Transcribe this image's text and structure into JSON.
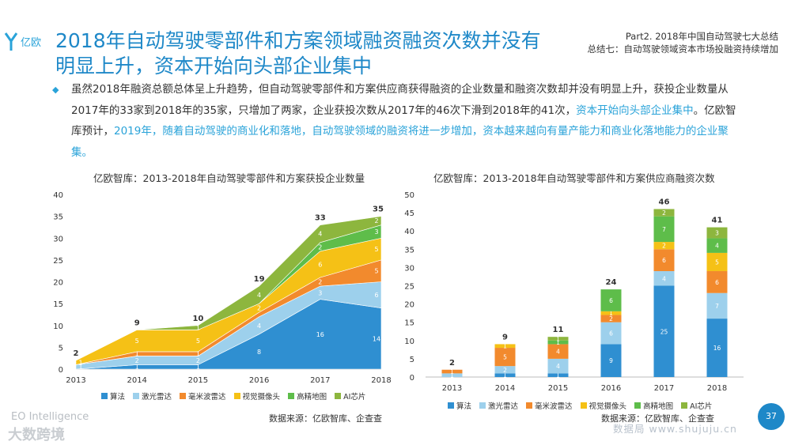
{
  "brand": {
    "logo_text": "亿欧"
  },
  "header": {
    "title": "2018年自动驾驶零部件和方案领域融资融资次数并没有明显上升，资本开始向头部企业集中",
    "part_label": "Part2. 2018年中国自动驾驶七大总结",
    "summary_label": "总结七：自动驾驶领域资本市场投融资持续增加"
  },
  "body": {
    "bullet": "◆",
    "text_main": "虽然2018年融资总额总体呈上升趋势，但自动驾驶零部件和方案供应商获得融资的企业数量和融资次数却并没有明显上升，获投企业数量从2017年的33家到2018年的35家，只增加了两家，企业获投次数从2017年的46次下滑到2018年的41次，",
    "text_hl1": "资本开始向头部企业集中",
    "text_mid": "。亿欧智库预计，",
    "text_hl2": "2019年，随着自动驾驶的商业化和落地，自动驾驶领域的融资将进一步增加，资本越来越向有量产能力和商业化落地能力的企业聚集。"
  },
  "colors": {
    "algo": "#2f8fd1",
    "lidar": "#9dd0ec",
    "mmwave": "#f28a2d",
    "camera": "#f5c116",
    "hdmap": "#5ebd4a",
    "aichip": "#8db63e"
  },
  "chart_data": [
    {
      "type": "area",
      "title": "亿欧智库：2013-2018年自动驾驶零部件和方案获投企业数量",
      "x": [
        "2013",
        "2014",
        "2015",
        "2016",
        "2017",
        "2018"
      ],
      "ylim": [
        0,
        40
      ],
      "yticks": [
        "0",
        "5",
        "10",
        "15",
        "20",
        "25",
        "30",
        "35",
        "40"
      ],
      "stacked": true,
      "series": [
        {
          "name": "算法",
          "key": "algo",
          "values": [
            0,
            1,
            1,
            8,
            16,
            14
          ],
          "labels": [
            "",
            "1",
            "1",
            "8",
            "16",
            "14"
          ]
        },
        {
          "name": "激光雷达",
          "key": "lidar",
          "values": [
            1,
            2,
            2,
            4,
            3,
            6
          ],
          "labels": [
            "1",
            "2",
            "2",
            "4",
            "3",
            "6"
          ]
        },
        {
          "name": "毫米波雷达",
          "key": "mmwave",
          "values": [
            0,
            1,
            1,
            1,
            2,
            5
          ],
          "labels": [
            "",
            "1",
            "1",
            "",
            "2",
            "5"
          ]
        },
        {
          "name": "视觉摄像头",
          "key": "camera",
          "values": [
            1,
            5,
            5,
            2,
            6,
            5
          ],
          "labels": [
            "1",
            "5",
            "5",
            "2",
            "6",
            "5"
          ]
        },
        {
          "name": "高精地图",
          "key": "hdmap",
          "values": [
            0,
            0,
            0,
            0,
            2,
            3
          ],
          "labels": [
            "",
            "",
            "",
            "",
            "2",
            "3"
          ]
        },
        {
          "name": "AI芯片",
          "key": "aichip",
          "values": [
            0,
            0,
            1,
            4,
            4,
            2
          ],
          "labels": [
            "",
            "",
            "1",
            "4",
            "4",
            "2"
          ]
        }
      ],
      "totals": [
        "2",
        "9",
        "10",
        "19",
        "33",
        "35"
      ],
      "legend": "bottom",
      "source": "数据来源：亿欧智库、企查查"
    },
    {
      "type": "bar",
      "title": "亿欧智库：2013-2018年自动驾驶零部件和方案供应商融资次数",
      "categories": [
        "2013",
        "2014",
        "2015",
        "2016",
        "2017",
        "2018"
      ],
      "ylim": [
        0,
        50
      ],
      "yticks": [
        "0",
        "5",
        "10",
        "15",
        "20",
        "25",
        "30",
        "35",
        "40",
        "45",
        "50"
      ],
      "stacked": true,
      "series": [
        {
          "name": "算法",
          "key": "algo",
          "values": [
            0,
            1,
            1,
            9,
            25,
            16
          ],
          "labels": [
            "",
            "1",
            "1",
            "9",
            "25",
            "16"
          ]
        },
        {
          "name": "激光雷达",
          "key": "lidar",
          "values": [
            1,
            2,
            4,
            6,
            4,
            7
          ],
          "labels": [
            "1",
            "2",
            "4",
            "6",
            "4",
            "7"
          ]
        },
        {
          "name": "毫米波雷达",
          "key": "mmwave",
          "values": [
            1,
            5,
            4,
            2,
            6,
            6
          ],
          "labels": [
            "1",
            "5",
            "4",
            "2",
            "6",
            "6"
          ]
        },
        {
          "name": "视觉摄像头",
          "key": "camera",
          "values": [
            0,
            1,
            0,
            1,
            2,
            5
          ],
          "labels": [
            "",
            "1",
            "",
            "1",
            "2",
            "5"
          ]
        },
        {
          "name": "高精地图",
          "key": "hdmap",
          "values": [
            0,
            0,
            1,
            6,
            7,
            4
          ],
          "labels": [
            "",
            "",
            "1",
            "6",
            "7",
            "4"
          ]
        },
        {
          "name": "AI芯片",
          "key": "aichip",
          "values": [
            0,
            0,
            1,
            0,
            2,
            3
          ],
          "labels": [
            "",
            "",
            "1",
            "",
            "2",
            "3"
          ]
        }
      ],
      "totals": [
        "2",
        "9",
        "11",
        "24",
        "46",
        "41"
      ],
      "legend": "bottom",
      "source": "数据来源：亿欧智库、企查查"
    }
  ],
  "footer": {
    "eo": "EO Intelligence",
    "watermark1": "大数跨境",
    "watermark2": "数据局 www.shujuju.cn",
    "page_number": "37"
  }
}
